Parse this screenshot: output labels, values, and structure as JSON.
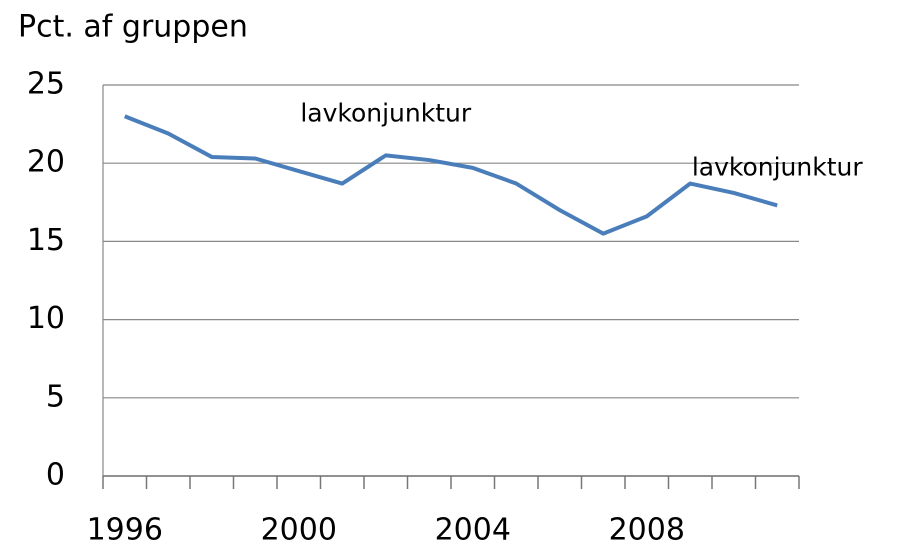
{
  "chart_data": {
    "type": "line",
    "y_label": "Pct. af gruppen",
    "categories": [
      "1996",
      null,
      null,
      null,
      "2000",
      null,
      null,
      null,
      "2004",
      null,
      null,
      null,
      "2008",
      null,
      null,
      null
    ],
    "series": [
      {
        "name": "Pct. af gruppen",
        "color": "#4a7ebb",
        "values": [
          23.0,
          21.9,
          20.4,
          20.3,
          19.5,
          18.7,
          20.5,
          20.2,
          19.7,
          18.7,
          17.0,
          15.5,
          16.6,
          18.7,
          18.1,
          17.3
        ]
      }
    ],
    "ylim": [
      0,
      25
    ],
    "yticks": [
      0,
      5,
      10,
      15,
      20,
      25
    ],
    "grid": true,
    "annotations": [
      {
        "text": "lavkonjunktur",
        "at": 6
      },
      {
        "text": "lavkonjunktur",
        "at": 15
      }
    ]
  }
}
